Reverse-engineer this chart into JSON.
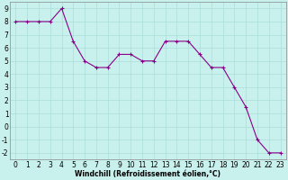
{
  "x": [
    0,
    1,
    2,
    3,
    4,
    5,
    6,
    7,
    8,
    9,
    10,
    11,
    12,
    13,
    14,
    15,
    16,
    17,
    18,
    19,
    20,
    21,
    22,
    23
  ],
  "y": [
    8.0,
    8.0,
    8.0,
    8.0,
    9.0,
    6.5,
    5.0,
    4.5,
    4.5,
    5.5,
    5.5,
    5.0,
    5.0,
    6.5,
    6.5,
    6.5,
    5.5,
    4.5,
    4.5,
    3.0,
    1.5,
    -1.0,
    -2.0,
    -2.0
  ],
  "line_color": "#880088",
  "marker": "+",
  "marker_size": 3.5,
  "linewidth": 0.8,
  "xlabel": "Windchill (Refroidissement éolien,°C)",
  "xlabel_fontsize": 5.5,
  "bg_color": "#c8f0ec",
  "grid_color": "#aaddda",
  "xlim": [
    -0.5,
    23.5
  ],
  "ylim": [
    -2.5,
    9.5
  ],
  "xticks": [
    0,
    1,
    2,
    3,
    4,
    5,
    6,
    7,
    8,
    9,
    10,
    11,
    12,
    13,
    14,
    15,
    16,
    17,
    18,
    19,
    20,
    21,
    22,
    23
  ],
  "yticks": [
    -2,
    -1,
    0,
    1,
    2,
    3,
    4,
    5,
    6,
    7,
    8,
    9
  ],
  "tick_fontsize": 5.5,
  "title": ""
}
